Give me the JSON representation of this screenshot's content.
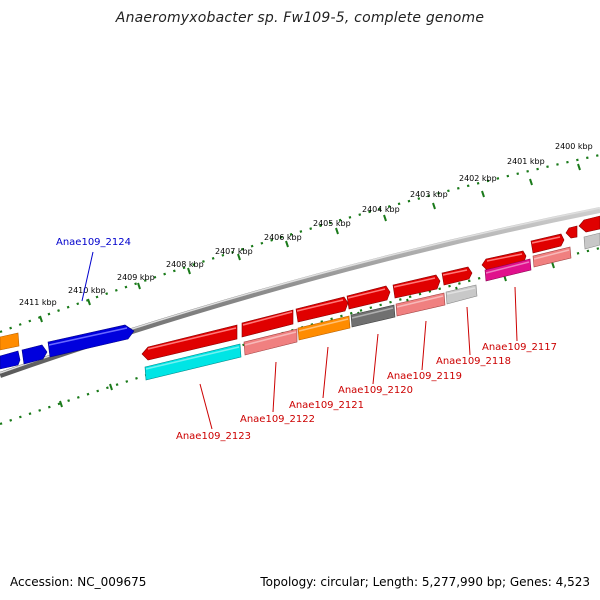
{
  "title": "Anaeromyxobacter sp. Fw109-5, complete genome",
  "footer": {
    "accession": "Accession: NC_009675",
    "summary": "Topology: circular; Length: 5,277,990 bp; Genes: 4,523"
  },
  "scale": {
    "labels": [
      "2400 kbp",
      "2401 kbp",
      "2402 kbp",
      "2403 kbp",
      "2404 kbp",
      "2405 kbp",
      "2406 kbp",
      "2407 kbp",
      "2408 kbp",
      "2409 kbp",
      "2410 kbp",
      "2411 kbp"
    ]
  },
  "gene_labels": [
    {
      "text": "Anae109_2124",
      "color": "#0000cc"
    },
    {
      "text": "Anae109_2123",
      "color": "#cc0000"
    },
    {
      "text": "Anae109_2122",
      "color": "#cc0000"
    },
    {
      "text": "Anae109_2121",
      "color": "#cc0000"
    },
    {
      "text": "Anae109_2120",
      "color": "#cc0000"
    },
    {
      "text": "Anae109_2119",
      "color": "#cc0000"
    },
    {
      "text": "Anae109_2118",
      "color": "#cc0000"
    },
    {
      "text": "Anae109_2117",
      "color": "#cc0000"
    }
  ],
  "colors": {
    "backbone": "#8c8c8c",
    "ticks": "#1a7a1a",
    "forward_gene": "#e00000",
    "reverse_gene_blue": "#0000dd",
    "orange_gene": "#ff8c00",
    "cyan_gene": "#00e5e5",
    "pink_gene": "#f08080",
    "gray_gene": "#707070",
    "light_gray_gene": "#c8c8c8",
    "magenta_gene": "#e0108c"
  }
}
